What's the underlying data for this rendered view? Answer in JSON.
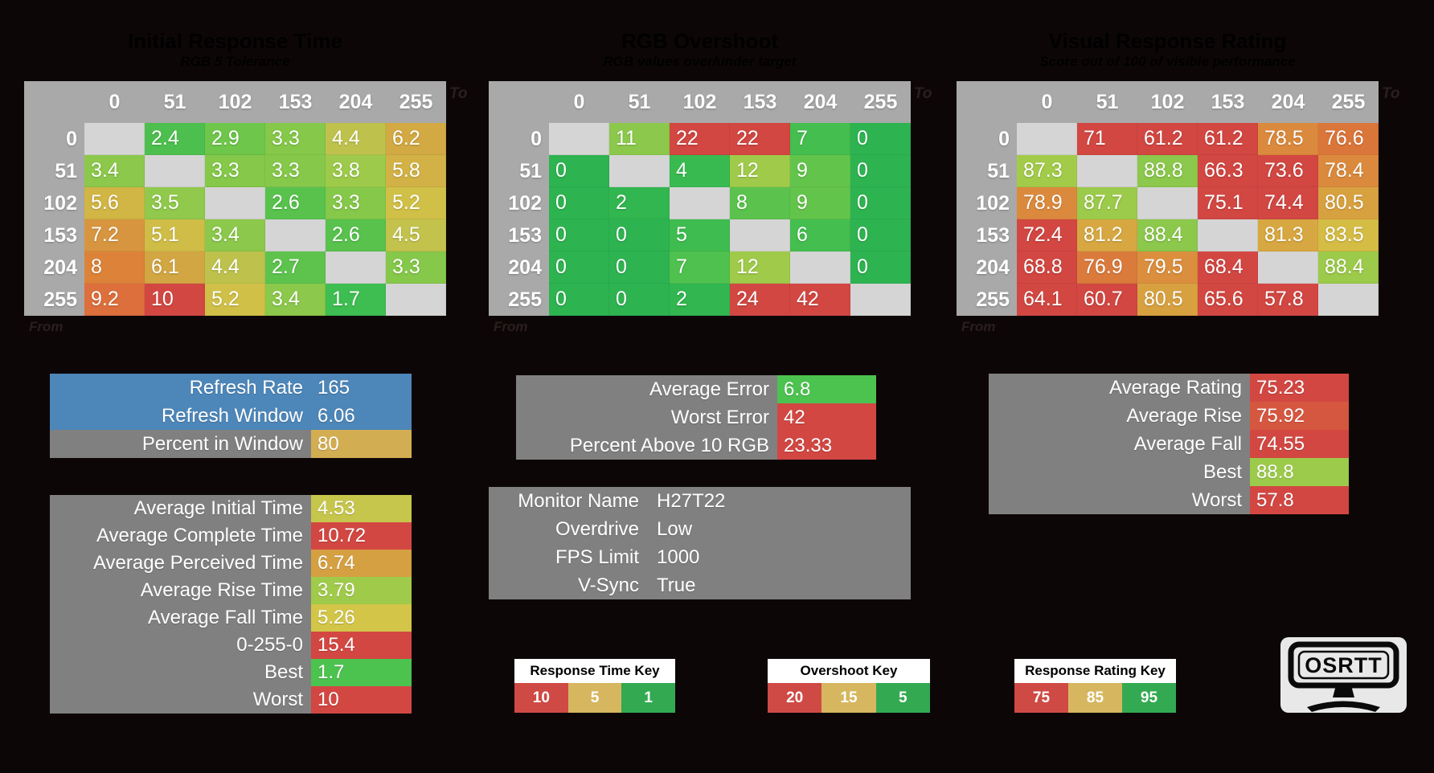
{
  "app": {
    "background": "#0d0607"
  },
  "chart_data": [
    {
      "type": "heatmap",
      "id": "initial-response-time",
      "title": "Initial Response Time",
      "subtitle": "RGB 5 Tolerance",
      "x_axis_label": "To",
      "y_axis_label": "From",
      "col_headers": [
        "0",
        "51",
        "102",
        "153",
        "204",
        "255"
      ],
      "row_headers": [
        "0",
        "51",
        "102",
        "153",
        "204",
        "255"
      ],
      "values": [
        [
          null,
          2.4,
          2.9,
          3.3,
          4.4,
          6.2
        ],
        [
          3.4,
          null,
          3.3,
          3.3,
          3.8,
          5.8
        ],
        [
          5.6,
          3.5,
          null,
          2.6,
          3.3,
          5.2
        ],
        [
          7.2,
          5.1,
          3.4,
          null,
          2.6,
          4.5
        ],
        [
          8,
          6.1,
          4.4,
          2.7,
          null,
          3.3
        ],
        [
          9.2,
          10,
          5.2,
          3.4,
          1.7,
          null
        ]
      ],
      "cell_colors": [
        [
          null,
          "#4dbf4e",
          "#6ec64b",
          "#85c84a",
          "#bec24d",
          "#d2a943"
        ],
        [
          "#8bc84b",
          null,
          "#85c84a",
          "#85c84a",
          "#9dca4a",
          "#d2b246"
        ],
        [
          "#d1b545",
          "#90c94b",
          null,
          "#58c24d",
          "#85c84a",
          "#d0c048"
        ],
        [
          "#d89540",
          "#cfbd47",
          "#8bc84b",
          null,
          "#58c24d",
          "#c2c24d"
        ],
        [
          "#dc8339",
          "#d2a642",
          "#bec24d",
          "#5dc34d",
          null,
          "#85c84a"
        ],
        [
          "#dc6f3b",
          "#d24742",
          "#d0c048",
          "#8bc84b",
          "#3ebd50",
          null
        ]
      ]
    },
    {
      "type": "heatmap",
      "id": "rgb-overshoot",
      "title": "RGB Overshoot",
      "subtitle": "RGB values over/under target",
      "x_axis_label": "To",
      "y_axis_label": "From",
      "col_headers": [
        "0",
        "51",
        "102",
        "153",
        "204",
        "255"
      ],
      "row_headers": [
        "0",
        "51",
        "102",
        "153",
        "204",
        "255"
      ],
      "values": [
        [
          null,
          11,
          22,
          22,
          7,
          0
        ],
        [
          0,
          null,
          4,
          12,
          9,
          0
        ],
        [
          0,
          2,
          null,
          8,
          9,
          0
        ],
        [
          0,
          0,
          5,
          null,
          6,
          0
        ],
        [
          0,
          0,
          7,
          12,
          null,
          0
        ],
        [
          0,
          0,
          2,
          24,
          42,
          null
        ]
      ],
      "cell_colors": [
        [
          null,
          "#8bc84b",
          "#d24742",
          "#d24742",
          "#44be4f",
          "#2eb351"
        ],
        [
          "#2eb351",
          null,
          "#38ba50",
          "#a0ca4a",
          "#63c44c",
          "#2eb351"
        ],
        [
          "#2eb351",
          "#31b650",
          null,
          "#5bc34d",
          "#63c44c",
          "#2eb351"
        ],
        [
          "#2eb351",
          "#2eb351",
          "#3fbc50",
          null,
          "#44be4f",
          "#2eb351"
        ],
        [
          "#2eb351",
          "#2eb351",
          "#4fc14e",
          "#a0ca4a",
          null,
          "#2eb351"
        ],
        [
          "#2eb351",
          "#2eb351",
          "#31b650",
          "#d24742",
          "#d24742",
          null
        ]
      ]
    },
    {
      "type": "heatmap",
      "id": "visual-response-rating",
      "title": "Visual Response Rating",
      "subtitle": "Score out of 100 of visible performance",
      "x_axis_label": "To",
      "y_axis_label": "From",
      "col_headers": [
        "0",
        "51",
        "102",
        "153",
        "204",
        "255"
      ],
      "row_headers": [
        "0",
        "51",
        "102",
        "153",
        "204",
        "255"
      ],
      "values": [
        [
          null,
          71,
          61.2,
          61.2,
          78.5,
          76.6
        ],
        [
          87.3,
          null,
          88.8,
          66.3,
          73.6,
          78.4
        ],
        [
          78.9,
          87.7,
          null,
          75.1,
          74.4,
          80.5
        ],
        [
          72.4,
          81.2,
          88.4,
          null,
          81.3,
          83.5
        ],
        [
          68.8,
          76.9,
          79.5,
          68.4,
          null,
          88.4
        ],
        [
          64.1,
          60.7,
          80.5,
          65.6,
          57.8,
          null
        ]
      ],
      "cell_colors": [
        [
          null,
          "#d24742",
          "#d24742",
          "#d24742",
          "#db8a3d",
          "#db763b"
        ],
        [
          "#a3cb4a",
          null,
          "#8bc84b",
          "#d24742",
          "#d24742",
          "#db8a3d"
        ],
        [
          "#db8a3d",
          "#9cca4a",
          null,
          "#d24742",
          "#d24742",
          "#d8a140"
        ],
        [
          "#d24742",
          "#d7a741",
          "#8bc84b",
          null,
          "#d7a741",
          "#d4bc45"
        ],
        [
          "#d24742",
          "#da7b3c",
          "#db8f3e",
          "#d24742",
          null,
          "#9cca4a"
        ],
        [
          "#d24742",
          "#d24742",
          "#d8a140",
          "#d24742",
          "#d24742",
          null
        ]
      ]
    }
  ],
  "panels": {
    "refresh": {
      "label_bg": "#808080",
      "rows": [
        {
          "label": "Refresh Rate",
          "value": "165",
          "label_bg": "#4d86b8",
          "value_bg": "#4d86b8"
        },
        {
          "label": "Refresh Window",
          "value": "6.06",
          "label_bg": "#4d86b8",
          "value_bg": "#4d86b8"
        },
        {
          "label": "Percent in Window",
          "value": "80",
          "value_bg": "#d3ad52"
        }
      ]
    },
    "times": {
      "label_bg": "#808080",
      "rows": [
        {
          "label": "Average Initial Time",
          "value": "4.53",
          "value_bg": "#c6c54c"
        },
        {
          "label": "Average Complete Time",
          "value": "10.72",
          "value_bg": "#d24742"
        },
        {
          "label": "Average Perceived Time",
          "value": "6.74",
          "value_bg": "#d5a042"
        },
        {
          "label": "Average Rise Time",
          "value": "3.79",
          "value_bg": "#a0ca4a"
        },
        {
          "label": "Average Fall Time",
          "value": "5.26",
          "value_bg": "#d2c548"
        },
        {
          "label": "0-255-0",
          "value": "15.4",
          "value_bg": "#d24742"
        },
        {
          "label": "Best",
          "value": "1.7",
          "value_bg": "#4cc24f"
        },
        {
          "label": "Worst",
          "value": "10",
          "value_bg": "#d24742"
        }
      ]
    },
    "errors": {
      "label_bg": "#808080",
      "rows": [
        {
          "label": "Average Error",
          "value": "6.8",
          "value_bg": "#4cc24f"
        },
        {
          "label": "Worst Error",
          "value": "42",
          "value_bg": "#d24742"
        },
        {
          "label": "Percent Above 10 RGB",
          "value": "23.33",
          "value_bg": "#d24742"
        }
      ]
    },
    "monitor": {
      "label_bg": "#808080",
      "value_bg": "#808080",
      "rows": [
        {
          "label": "Monitor Name",
          "value": "H27T22"
        },
        {
          "label": "Overdrive",
          "value": "Low"
        },
        {
          "label": "FPS Limit",
          "value": "1000"
        },
        {
          "label": "V-Sync",
          "value": "True"
        }
      ]
    },
    "ratings": {
      "label_bg": "#808080",
      "rows": [
        {
          "label": "Average Rating",
          "value": "75.23",
          "value_bg": "#d24742"
        },
        {
          "label": "Average Rise",
          "value": "75.92",
          "value_bg": "#d65740"
        },
        {
          "label": "Average Fall",
          "value": "74.55",
          "value_bg": "#d24742"
        },
        {
          "label": "Best",
          "value": "88.8",
          "value_bg": "#9cca4a"
        },
        {
          "label": "Worst",
          "value": "57.8",
          "value_bg": "#d24742"
        }
      ]
    }
  },
  "keys": [
    {
      "title": "Response Time Key",
      "cells": [
        {
          "value": "10",
          "bg": "#cf4a44"
        },
        {
          "value": "5",
          "bg": "#d6b75f"
        },
        {
          "value": "1",
          "bg": "#33aa51"
        }
      ]
    },
    {
      "title": "Overshoot Key",
      "cells": [
        {
          "value": "20",
          "bg": "#cf4a44"
        },
        {
          "value": "15",
          "bg": "#d6b75f"
        },
        {
          "value": "5",
          "bg": "#33aa51"
        }
      ]
    },
    {
      "title": "Response Rating Key",
      "cells": [
        {
          "value": "75",
          "bg": "#cf4a44"
        },
        {
          "value": "85",
          "bg": "#d6b75f"
        },
        {
          "value": "95",
          "bg": "#33aa51"
        }
      ]
    }
  ],
  "logo": {
    "text": "OSRTT"
  }
}
